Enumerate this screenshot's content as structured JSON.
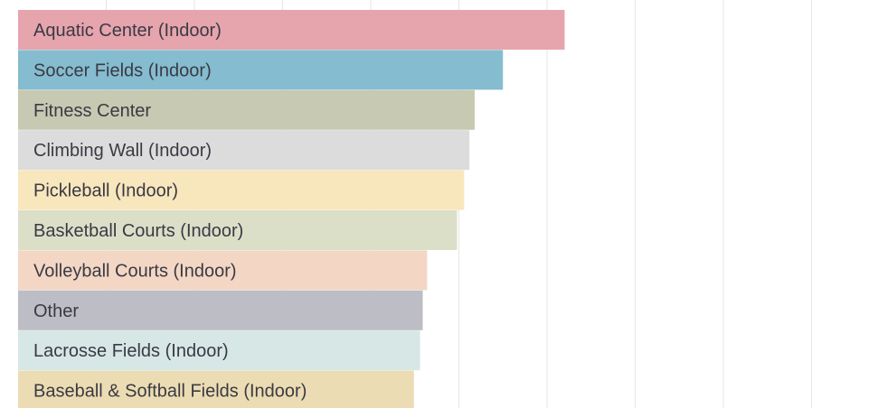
{
  "chart_data": {
    "type": "bar",
    "orientation": "horizontal",
    "categories": [
      "Aquatic Center (Indoor)",
      "Soccer Fields (Indoor)",
      "Fitness Center",
      "Climbing Wall (Indoor)",
      "Pickleball (Indoor)",
      "Basketball Courts (Indoor)",
      "Volleyball Courts (Indoor)",
      "Other",
      "Lacrosse Fields (Indoor)",
      "Baseball & Softball Fields (Indoor)"
    ],
    "values": [
      62.0,
      55.0,
      51.8,
      51.2,
      50.6,
      49.8,
      46.4,
      45.9,
      45.6,
      44.9
    ],
    "colors": [
      "#e6a4ad",
      "#85bccf",
      "#c8c9b2",
      "#dcdcdc",
      "#f8e6bd",
      "#dcdfc8",
      "#f3d6c4",
      "#bcbdc5",
      "#d6e7e5",
      "#ecdcb3"
    ],
    "xlim": [
      0,
      100
    ],
    "grid": true,
    "title": "",
    "xlabel": "",
    "ylabel": ""
  }
}
